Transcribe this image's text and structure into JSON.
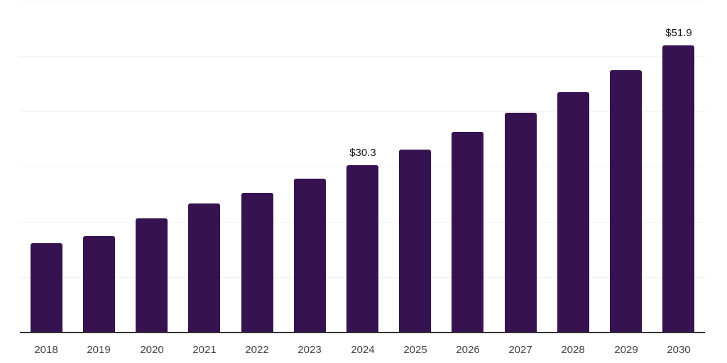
{
  "chart_data": {
    "type": "bar",
    "categories": [
      "2018",
      "2019",
      "2020",
      "2021",
      "2022",
      "2023",
      "2024",
      "2025",
      "2026",
      "2027",
      "2028",
      "2029",
      "2030"
    ],
    "values": [
      16.2,
      17.5,
      20.6,
      23.3,
      25.3,
      27.8,
      30.3,
      33.1,
      36.3,
      39.7,
      43.4,
      47.5,
      51.9
    ],
    "annotations": [
      {
        "category": "2024",
        "text": "$30.3"
      },
      {
        "category": "2030",
        "text": "$51.9"
      }
    ],
    "ylim": [
      0,
      60
    ],
    "y_gridline_step": 10,
    "grid": true,
    "legend_position": "none",
    "colors": {
      "bar": "#371250",
      "gridline": "#f2f2f2",
      "axis": "#323232",
      "tick_label": "#3f3f3f",
      "value_label": "#141414"
    }
  }
}
